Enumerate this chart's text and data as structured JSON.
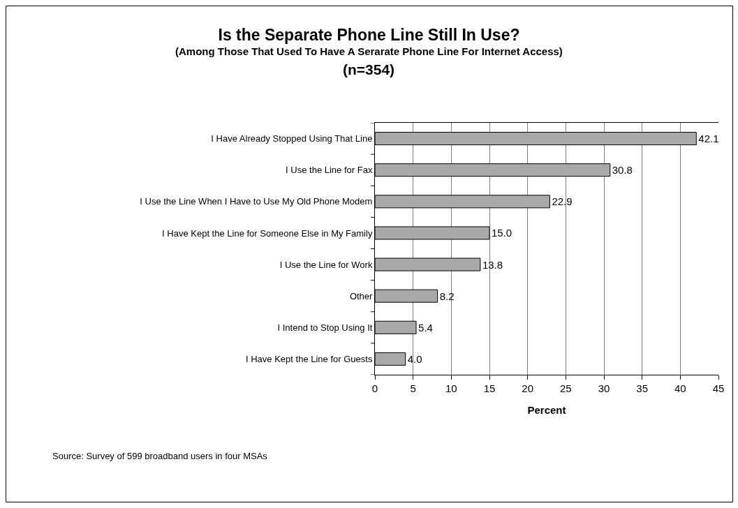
{
  "chart_data": {
    "type": "bar",
    "orientation": "horizontal",
    "title": "Is the Separate Phone Line Still In Use?",
    "subtitle": "(Among Those That Used To Have A Serarate Phone Line For Internet Access)",
    "annotations": [
      "(n=354)",
      "Source: Survey of 599 broadband users in four MSAs"
    ],
    "xlabel": "Percent",
    "categories": [
      "I Have Already Stopped Using That Line",
      "I Use the Line for Fax",
      "I Use the Line When I Have to Use My Old Phone Modem",
      "I Have Kept the Line for Someone Else in My Family",
      "I Use the Line for Work",
      "Other",
      "I Intend to Stop Using It",
      "I Have Kept the Line for Guests"
    ],
    "values": [
      42.1,
      30.8,
      22.9,
      15.0,
      13.8,
      8.2,
      5.4,
      4.0
    ],
    "value_labels": [
      "42.1",
      "30.8",
      "22.9",
      "15.0",
      "13.8",
      "8.2",
      "5.4",
      "4.0"
    ],
    "color": "#a9a9a9",
    "xlim": [
      0,
      45
    ],
    "xticks": [
      0,
      5,
      10,
      15,
      20,
      25,
      30,
      35,
      40,
      45
    ],
    "grid": "x"
  }
}
